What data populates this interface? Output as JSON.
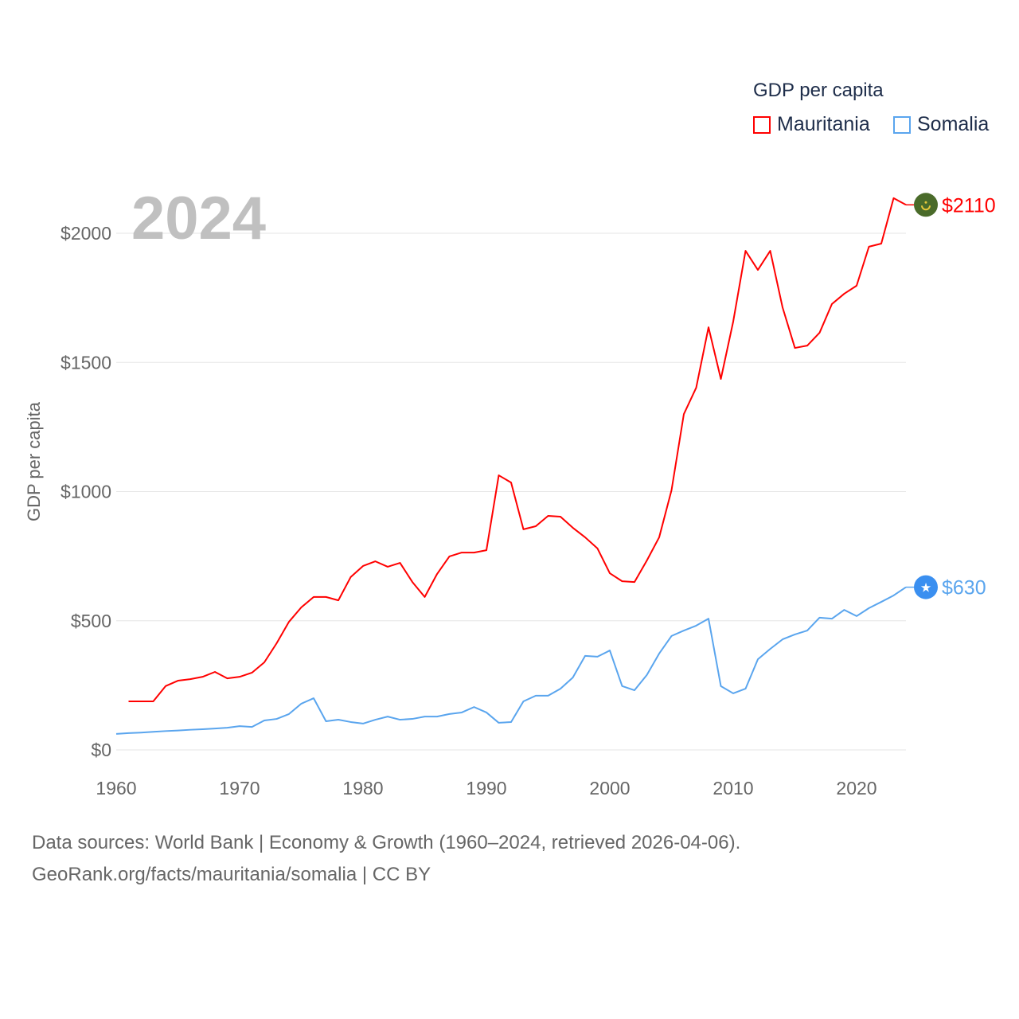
{
  "chart_data": {
    "type": "line",
    "title": "",
    "xlabel": "",
    "ylabel": "GDP per capita",
    "xlim": [
      1960,
      2024
    ],
    "ylim": [
      0,
      2150
    ],
    "x_ticks": [
      1960,
      1970,
      1980,
      1990,
      2000,
      2010,
      2020
    ],
    "x_tick_labels": [
      "1960",
      "1970",
      "1980",
      "1990",
      "2000",
      "2010",
      "2020"
    ],
    "y_ticks": [
      0,
      500,
      1000,
      1500,
      2000
    ],
    "y_tick_labels": [
      "$0",
      "$500",
      "$1000",
      "$1500",
      "$2000"
    ],
    "grid": true,
    "year_watermark": "2024",
    "legend": {
      "title": "GDP per capita",
      "placement": "top-right"
    },
    "series": [
      {
        "name": "Mauritania",
        "color": "#ff0000",
        "end_label": "$2110",
        "flag_color": "#4a6b2a",
        "x": [
          1961,
          1962,
          1963,
          1964,
          1965,
          1966,
          1967,
          1968,
          1969,
          1970,
          1971,
          1972,
          1973,
          1974,
          1975,
          1976,
          1977,
          1978,
          1979,
          1980,
          1981,
          1982,
          1983,
          1984,
          1985,
          1986,
          1987,
          1988,
          1989,
          1990,
          1991,
          1992,
          1993,
          1994,
          1995,
          1996,
          1997,
          1998,
          1999,
          2000,
          2001,
          2002,
          2003,
          2004,
          2005,
          2006,
          2007,
          2008,
          2009,
          2010,
          2011,
          2012,
          2013,
          2014,
          2015,
          2016,
          2017,
          2018,
          2019,
          2020,
          2021,
          2022,
          2023,
          2024
        ],
        "values": [
          188,
          188,
          188,
          247,
          268,
          274,
          283,
          302,
          277,
          283,
          299,
          339,
          413,
          496,
          552,
          592,
          592,
          579,
          669,
          712,
          730,
          709,
          724,
          650,
          592,
          681,
          749,
          764,
          764,
          773,
          1063,
          1035,
          854,
          866,
          906,
          903,
          860,
          823,
          780,
          684,
          653,
          650,
          733,
          823,
          1005,
          1300,
          1402,
          1636,
          1436,
          1658,
          1932,
          1858,
          1932,
          1713,
          1556,
          1565,
          1615,
          1726,
          1766,
          1797,
          1948,
          1960,
          2136,
          2110
        ]
      },
      {
        "name": "Somalia",
        "color": "#5aa5ee",
        "end_label": "$630",
        "flag_color": "#3a8ff0",
        "x": [
          1960,
          1961,
          1962,
          1963,
          1964,
          1965,
          1966,
          1967,
          1968,
          1969,
          1970,
          1971,
          1972,
          1973,
          1974,
          1975,
          1976,
          1977,
          1978,
          1979,
          1980,
          1981,
          1982,
          1983,
          1984,
          1985,
          1986,
          1987,
          1988,
          1989,
          1990,
          1991,
          1992,
          1993,
          1994,
          1995,
          1996,
          1997,
          1998,
          1999,
          2000,
          2001,
          2002,
          2003,
          2004,
          2005,
          2006,
          2007,
          2008,
          2009,
          2010,
          2011,
          2012,
          2013,
          2014,
          2015,
          2016,
          2017,
          2018,
          2019,
          2020,
          2021,
          2022,
          2023,
          2024
        ],
        "values": [
          62,
          65,
          67,
          70,
          73,
          75,
          78,
          80,
          83,
          86,
          92,
          89,
          114,
          120,
          139,
          179,
          200,
          111,
          117,
          108,
          102,
          117,
          129,
          117,
          120,
          129,
          129,
          139,
          145,
          166,
          145,
          105,
          108,
          188,
          210,
          210,
          237,
          280,
          364,
          361,
          385,
          247,
          231,
          290,
          373,
          441,
          462,
          481,
          508,
          247,
          219,
          237,
          351,
          391,
          428,
          447,
          462,
          512,
          508,
          542,
          518,
          549,
          573,
          598,
          630
        ]
      }
    ]
  },
  "footer": {
    "line1": "Data sources: World Bank | Economy & Growth (1960–2024, retrieved 2026-04-06).",
    "line2": "GeoRank.org/facts/mauritania/somalia | CC BY"
  }
}
